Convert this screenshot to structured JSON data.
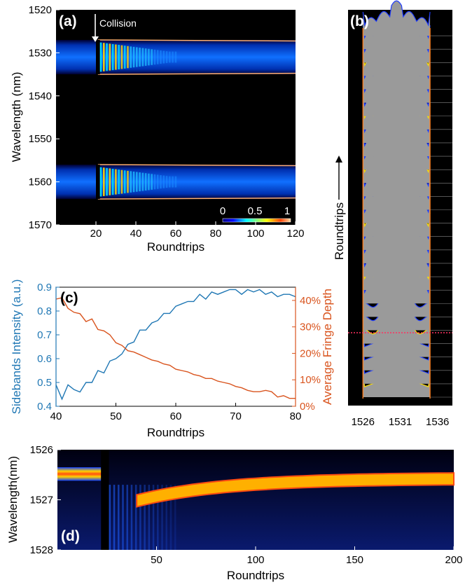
{
  "colors": {
    "left_axis": "#1f77b4",
    "right_axis": "#d9541e",
    "map_bg": "#000000",
    "panel_text": "#ffffff"
  },
  "chart_data": [
    {
      "id": "a",
      "type": "heatmap",
      "panel_label": "(a)",
      "xlabel": "Roundtrips",
      "ylabel": "Wavelength (nm)",
      "xlim": [
        0,
        120
      ],
      "ylim": [
        1520,
        1570
      ],
      "y_reversed": true,
      "x_ticks": [
        "20",
        "40",
        "60",
        "80",
        "100",
        "120"
      ],
      "y_ticks": [
        "1520",
        "1530",
        "1540",
        "1550",
        "1560",
        "1570"
      ],
      "annotation": {
        "text": "Collision",
        "x": 21
      },
      "colorbar": {
        "ticks": [
          "0",
          "0.5",
          "1"
        ],
        "range": [
          0,
          1
        ]
      },
      "bands": [
        {
          "center": 1531,
          "lo": 1527,
          "hi": 1535
        },
        {
          "center": 1560,
          "lo": 1556,
          "hi": 1564
        }
      ]
    },
    {
      "id": "b",
      "type": "area",
      "panel_label": "(b)",
      "ylabel": "Roundtrips",
      "x_ticks": [
        "1526",
        "1531",
        "1536"
      ],
      "xlim": [
        1524,
        1538
      ],
      "band": [
        1526,
        1535
      ],
      "traces": 28
    },
    {
      "id": "c",
      "type": "line",
      "panel_label": "(c)",
      "xlabel": "Roundtrips",
      "ylabel_left": "Sidebands Intensity (a.u.)",
      "ylabel_right": "Average Fringe Depth",
      "xlim": [
        40,
        80
      ],
      "ylim_left": [
        0.4,
        0.9
      ],
      "ylim_right": [
        0,
        45
      ],
      "x_ticks": [
        "40",
        "50",
        "60",
        "70",
        "80"
      ],
      "y_ticks_left": [
        "0.4",
        "0.5",
        "0.6",
        "0.7",
        "0.8",
        "0.9"
      ],
      "y_ticks_right": [
        "0%",
        "10%",
        "20%",
        "30%",
        "40%"
      ],
      "series": [
        {
          "axis": "left",
          "x": [
            40,
            41,
            42,
            43,
            44,
            45,
            46,
            47,
            48,
            49,
            50,
            51,
            52,
            53,
            54,
            55,
            56,
            57,
            58,
            59,
            60,
            61,
            62,
            63,
            64,
            65,
            66,
            67,
            68,
            69,
            70,
            71,
            72,
            73,
            74,
            75,
            76,
            77,
            78,
            79,
            80
          ],
          "values": [
            0.49,
            0.43,
            0.49,
            0.47,
            0.46,
            0.5,
            0.5,
            0.55,
            0.54,
            0.59,
            0.6,
            0.62,
            0.66,
            0.67,
            0.72,
            0.72,
            0.75,
            0.76,
            0.79,
            0.79,
            0.82,
            0.83,
            0.84,
            0.84,
            0.87,
            0.85,
            0.88,
            0.87,
            0.88,
            0.89,
            0.89,
            0.87,
            0.89,
            0.88,
            0.89,
            0.87,
            0.88,
            0.86,
            0.87,
            0.87,
            0.86
          ]
        },
        {
          "axis": "right",
          "x": [
            40,
            41,
            42,
            43,
            44,
            45,
            46,
            47,
            48,
            49,
            50,
            51,
            52,
            53,
            54,
            55,
            56,
            57,
            58,
            59,
            60,
            61,
            62,
            63,
            64,
            65,
            66,
            67,
            68,
            69,
            70,
            71,
            72,
            73,
            74,
            75,
            76,
            77,
            78,
            79,
            80
          ],
          "values": [
            40.5,
            41,
            37,
            35.5,
            35,
            32,
            33,
            29,
            28.5,
            27,
            24,
            23,
            21,
            20.5,
            19.5,
            18.5,
            17.5,
            17,
            16,
            15.5,
            14,
            13.5,
            13,
            12,
            11.5,
            10.5,
            10.5,
            9.5,
            9,
            8.5,
            7.5,
            7,
            6,
            5.5,
            5.5,
            6,
            5.5,
            3.5,
            4,
            3,
            3
          ]
        }
      ]
    },
    {
      "id": "d",
      "type": "heatmap",
      "panel_label": "(d)",
      "xlabel": "Roundtrips",
      "ylabel": "Wavelength(nm)",
      "xlim": [
        0,
        200
      ],
      "ylim": [
        1526,
        1528
      ],
      "y_reversed": true,
      "x_ticks": [
        "50",
        "100",
        "150",
        "200"
      ],
      "y_ticks": [
        "1526",
        "1527",
        "1528"
      ]
    }
  ]
}
